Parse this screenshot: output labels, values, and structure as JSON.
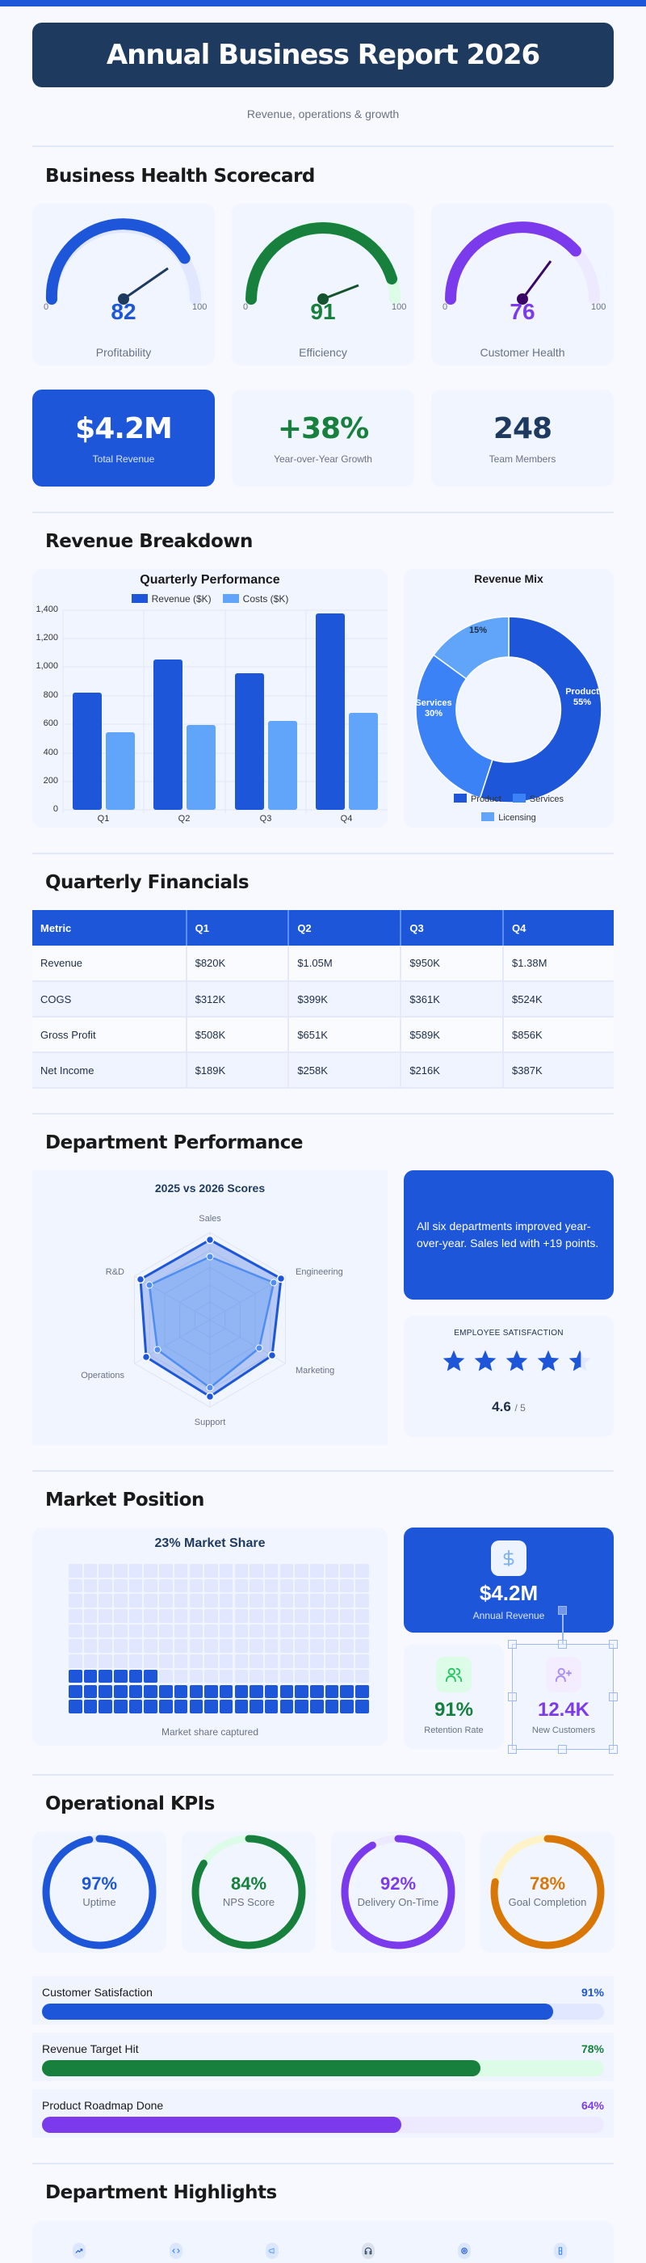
{
  "header": {
    "title": "Annual Business Report 2026",
    "subtitle": "Revenue, operations & growth"
  },
  "sections": {
    "scorecard": "Business Health Scorecard",
    "revenue": "Revenue Breakdown",
    "financials": "Quarterly Financials",
    "departments": "Department Performance",
    "market": "Market Position",
    "kpis": "Operational KPIs",
    "highlights": "Department Highlights"
  },
  "gauges": [
    {
      "label": "Profitability",
      "value": "82",
      "min": "0",
      "max": "100",
      "color": "#1d56d8",
      "track": "#e0e7ff",
      "needle": "#1f3a5f"
    },
    {
      "label": "Efficiency",
      "value": "91",
      "min": "0",
      "max": "100",
      "color": "#16803c",
      "track": "#dcfce7",
      "needle": "#14532d"
    },
    {
      "label": "Customer Health",
      "value": "76",
      "min": "0",
      "max": "100",
      "color": "#7c3aed",
      "track": "#ede9fe",
      "needle": "#3b0764"
    }
  ],
  "stats": [
    {
      "value": "$4.2M",
      "label": "Total Revenue"
    },
    {
      "value": "+38%",
      "label": "Year-over-Year Growth"
    },
    {
      "value": "248",
      "label": "Team Members"
    }
  ],
  "chart_data": [
    {
      "type": "bar",
      "title": "Quarterly Performance",
      "categories": [
        "Q1",
        "Q2",
        "Q3",
        "Q4"
      ],
      "series": [
        {
          "name": "Revenue ($K)",
          "values": [
            820,
            1050,
            950,
            1380
          ],
          "color": "#1d56d8"
        },
        {
          "name": "Costs ($K)",
          "values": [
            540,
            590,
            620,
            680
          ],
          "color": "#60a5fa"
        }
      ],
      "yticks": [
        "0",
        "200",
        "400",
        "600",
        "800",
        "1,000",
        "1,200",
        "1,400"
      ],
      "ylim": [
        0,
        1400
      ],
      "xlabel": "",
      "ylabel": "",
      "grid": true,
      "legend_position": "top"
    },
    {
      "type": "pie",
      "title": "Revenue Mix",
      "categories": [
        "Product",
        "Services",
        "Licensing"
      ],
      "values": [
        55,
        30,
        15
      ],
      "colors": [
        "#1d56d8",
        "#3b82f6",
        "#60a5fa"
      ],
      "labels": [
        "Product 55%",
        "Services 30%",
        "15%"
      ],
      "donut": true,
      "legend_position": "bottom"
    },
    {
      "type": "radar",
      "title": "2025 vs 2026 Scores",
      "categories": [
        "Sales",
        "Engineering",
        "Marketing",
        "Support",
        "Operations",
        "R&D"
      ],
      "series": [
        {
          "name": "2026",
          "values": [
            92,
            94,
            80,
            88,
            82,
            92
          ],
          "color": "#1d56d8"
        },
        {
          "name": "2025",
          "values": [
            73,
            86,
            68,
            78,
            67,
            81
          ],
          "color": "#4f8ef0"
        }
      ],
      "rlim": [
        0,
        100
      ]
    },
    {
      "type": "waffle",
      "title": "23% Market Share",
      "total_cells": 200,
      "filled_cells": 46,
      "columns": 20,
      "caption": "Market share captured"
    }
  ],
  "revenue_chart": {
    "title": "Quarterly Performance",
    "legend": [
      "Revenue ($K)",
      "Costs ($K)"
    ],
    "categories": [
      "Q1",
      "Q2",
      "Q3",
      "Q4"
    ],
    "yticks": [
      "0",
      "200",
      "400",
      "600",
      "800",
      "1,000",
      "1,200",
      "1,400"
    ]
  },
  "mix_chart": {
    "title": "Revenue Mix",
    "legend": [
      "Product",
      "Services",
      "Licensing"
    ],
    "labels": {
      "product_name": "Product",
      "product_pct": "55%",
      "services_name": "Services",
      "services_pct": "30%",
      "licensing_pct": "15%"
    }
  },
  "table": {
    "headers": [
      "Metric",
      "Q1",
      "Q2",
      "Q3",
      "Q4"
    ],
    "rows": [
      [
        "Revenue",
        "$820K",
        "$1.05M",
        "$950K",
        "$1.38M"
      ],
      [
        "COGS",
        "$312K",
        "$399K",
        "$361K",
        "$524K"
      ],
      [
        "Gross Profit",
        "$508K",
        "$651K",
        "$589K",
        "$856K"
      ],
      [
        "Net Income",
        "$189K",
        "$258K",
        "$216K",
        "$387K"
      ]
    ]
  },
  "radar": {
    "title": "2025 vs 2026 Scores",
    "axes": [
      "Sales",
      "Engineering",
      "Marketing",
      "Support",
      "Operations",
      "R&D"
    ]
  },
  "note": "All six departments improved year-over-year. Sales led with +19 points.",
  "satisfaction": {
    "title": "EMPLOYEE SATISFACTION",
    "score": "4.6",
    "out_of": "/ 5",
    "stars": 4.6
  },
  "market": {
    "title": "23% Market Share",
    "caption": "Market share captured",
    "annual_revenue": {
      "value": "$4.2M",
      "label": "Annual Revenue",
      "icon": "dollar-icon"
    },
    "retention": {
      "value": "91%",
      "label": "Retention Rate",
      "icon": "users-icon"
    },
    "new_customers": {
      "value": "12.4K",
      "label": "New Customers",
      "icon": "user-plus-icon"
    }
  },
  "kpis": [
    {
      "value": "97%",
      "label": "Uptime",
      "pct": 97,
      "color": "#1d56d8",
      "track": "#e0e7ff"
    },
    {
      "value": "84%",
      "label": "NPS Score",
      "pct": 84,
      "color": "#16803c",
      "track": "#dcfce7"
    },
    {
      "value": "92%",
      "label": "Delivery On-Time",
      "pct": 92,
      "color": "#7c3aed",
      "track": "#ede9fe"
    },
    {
      "value": "78%",
      "label": "Goal Completion",
      "pct": 78,
      "color": "#d97706",
      "track": "#fef3c7"
    }
  ],
  "progress": [
    {
      "label": "Customer Satisfaction",
      "value": "91%",
      "pct": 91,
      "color": "#1d56d8",
      "track": "#e0e7ff"
    },
    {
      "label": "Revenue Target Hit",
      "value": "78%",
      "pct": 78,
      "color": "#16803c",
      "track": "#dcfce7"
    },
    {
      "label": "Product Roadmap Done",
      "value": "64%",
      "pct": 64,
      "color": "#7c3aed",
      "track": "#ede9fe"
    }
  ],
  "highlights": {
    "icons": [
      "trending-up-icon",
      "code-icon",
      "megaphone-icon",
      "headphones-icon",
      "gear-icon",
      "flask-icon"
    ]
  },
  "colors": {
    "primary": "#1d56d8",
    "navy": "#1f3a5f",
    "green": "#16803c",
    "purple": "#7c3aed",
    "orange": "#d97706"
  }
}
